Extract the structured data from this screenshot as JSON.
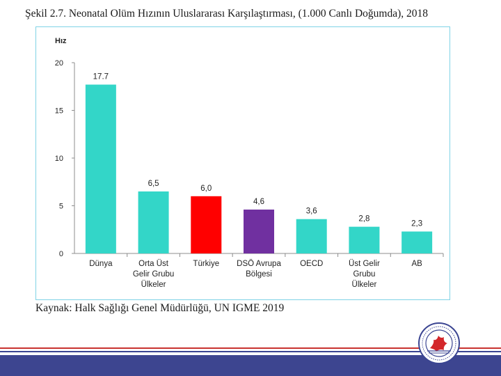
{
  "page": {
    "title": "Şekil 2.7. Neonatal Olüm Hızının Uluslararası Karşılaştırması, (1.000 Canlı Doğumda), 2018",
    "source": "Kaynak: Halk Sağlığı Genel Müdürlüğü, UN IGME 2019"
  },
  "chart_data": {
    "type": "bar",
    "title": "Şekil 2.7. Neonatal Olüm Hızının Uluslararası Karşılaştırması, (1.000 Canlı Doğumda), 2018",
    "ylabel": "Hız",
    "xlabel": "",
    "ylim": [
      0,
      20
    ],
    "yticks": [
      0,
      5,
      10,
      15,
      20
    ],
    "ytick_labels": [
      "0",
      "5",
      "10",
      "15",
      "20"
    ],
    "grid": false,
    "categories": [
      [
        "Dünya"
      ],
      [
        "Orta Üst",
        "Gelir Grubu",
        "Ülkeler"
      ],
      [
        "Türkiye"
      ],
      [
        "DSÖ Avrupa",
        "Bölgesi"
      ],
      [
        "OECD"
      ],
      [
        "Üst Gelir",
        "Grubu",
        "Ülkeler"
      ],
      [
        "AB"
      ]
    ],
    "values": [
      17.7,
      6.5,
      6.0,
      4.6,
      3.6,
      2.8,
      2.3
    ],
    "value_labels": [
      "17.7",
      "6,5",
      "6,0",
      "4,6",
      "3,6",
      "2,8",
      "2,3"
    ],
    "colors": [
      "#33d6c8",
      "#33d6c8",
      "#ff0000",
      "#7030a0",
      "#33d6c8",
      "#33d6c8",
      "#33d6c8"
    ]
  },
  "colors": {
    "frame": "#7fd3e6",
    "axis": "#8c8c8c",
    "footer_navy": "#3d4590",
    "footer_red": "#c8322f"
  },
  "logo": {
    "icon": "university-seal-icon"
  }
}
